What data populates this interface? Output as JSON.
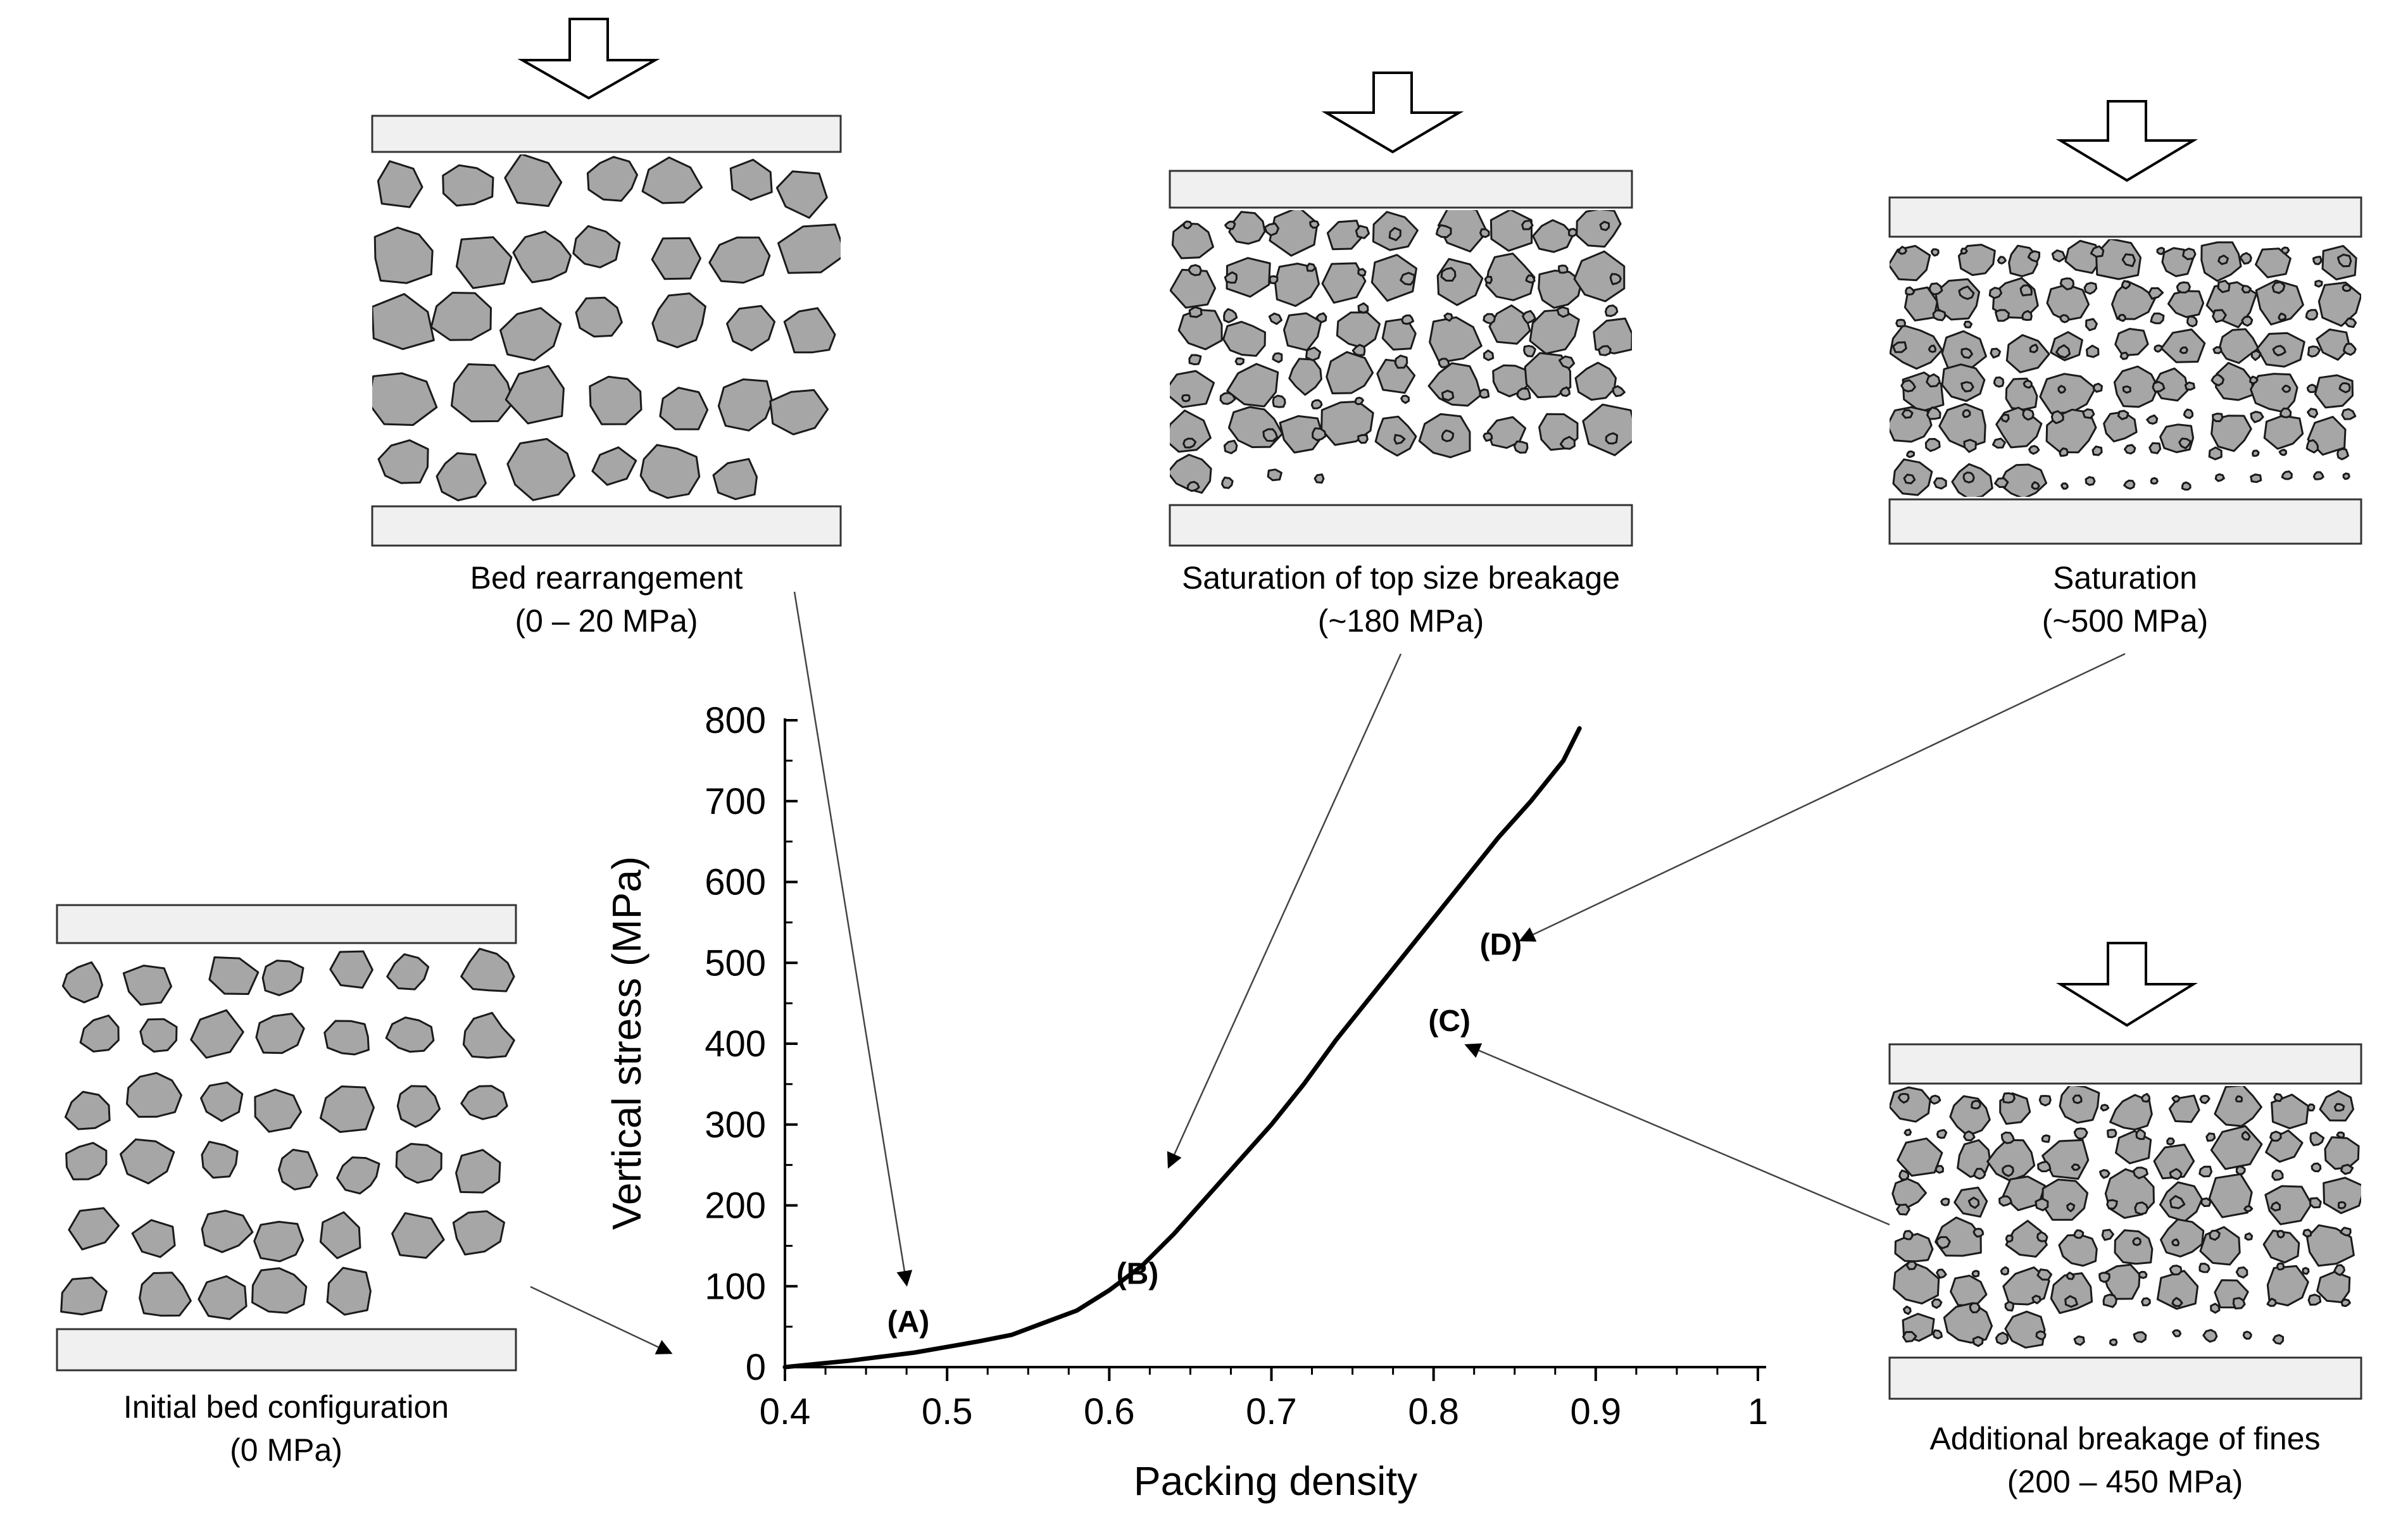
{
  "chart_data": {
    "type": "line",
    "xlabel": "Packing density",
    "ylabel": "Vertical stress (MPa)",
    "xlim": [
      0.4,
      1.0
    ],
    "ylim": [
      0,
      800
    ],
    "x_ticks": [
      "0.4",
      "0.5",
      "0.6",
      "0.7",
      "0.8",
      "0.9",
      "1"
    ],
    "y_ticks": [
      "0",
      "100",
      "200",
      "300",
      "400",
      "500",
      "600",
      "700",
      "800"
    ],
    "series": [
      {
        "x": [
          0.4,
          0.42,
          0.44,
          0.46,
          0.48,
          0.5,
          0.52,
          0.54,
          0.56,
          0.58,
          0.6,
          0.62,
          0.64,
          0.66,
          0.68,
          0.7,
          0.72,
          0.74,
          0.76,
          0.78,
          0.8,
          0.82,
          0.84,
          0.86,
          0.88,
          0.89
        ],
        "y": [
          0,
          4,
          8,
          13,
          18,
          25,
          32,
          40,
          55,
          70,
          95,
          125,
          165,
          210,
          255,
          300,
          350,
          405,
          455,
          505,
          555,
          605,
          655,
          700,
          750,
          790
        ]
      }
    ],
    "point_labels": [
      {
        "label": "(A)",
        "x": 0.48,
        "y": 20
      },
      {
        "label": "(B)",
        "x": 0.635,
        "y": 150
      },
      {
        "label": "(C)",
        "x": 0.8,
        "y": 400
      },
      {
        "label": "(D)",
        "x": 0.82,
        "y": 510
      }
    ]
  },
  "panels": {
    "initial": {
      "title": "Initial bed configuration",
      "pressure": "(0 MPa)"
    },
    "rearrange": {
      "title": "Bed rearrangement",
      "pressure": "(0 – 20 MPa)"
    },
    "topsize": {
      "title": "Saturation of top size breakage",
      "pressure": "(~180 MPa)"
    },
    "saturation": {
      "title": "Saturation",
      "pressure": "(~500 MPa)"
    },
    "fines": {
      "title": "Additional breakage of fines",
      "pressure": "(200 – 450 MPa)"
    }
  },
  "colors": {
    "particle": "#a6a6a6",
    "plate": "#f0f0f0",
    "curve": "#000000"
  }
}
